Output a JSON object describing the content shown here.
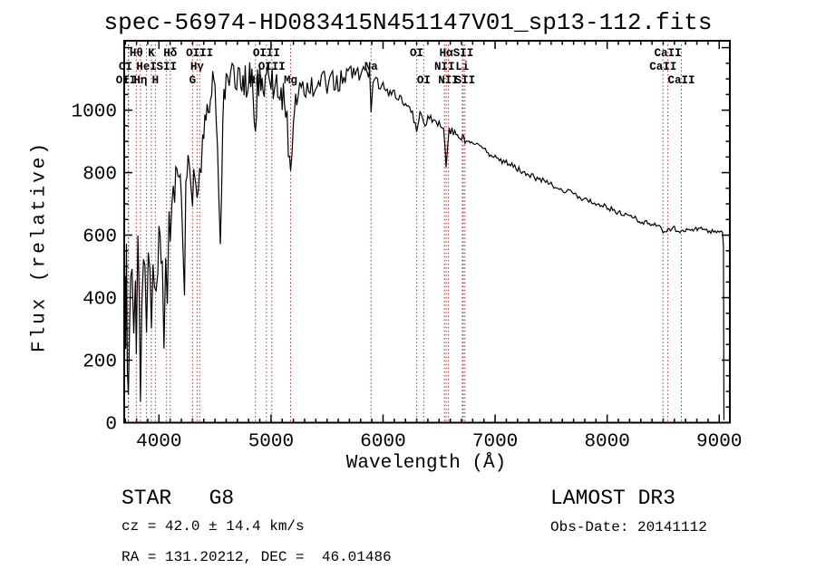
{
  "title": "spec-56974-HD083415N451147V01_sp13-112.fits",
  "annotations": {
    "class_label": "STAR   G8",
    "survey": "LAMOST DR3",
    "cz": "cz = 42.0 ± 14.4 km/s",
    "obs_date": "Obs-Date: 20141112",
    "radec": "RA = 131.20212, DEC =  46.01486"
  },
  "chart_data": {
    "type": "line",
    "title": "spec-56974-HD083415N451147V01_sp13-112.fits",
    "xlabel": "Wavelength (Å)",
    "ylabel": "Flux (relative)",
    "xlim": [
      3690,
      9095
    ],
    "ylim": [
      0,
      1222
    ],
    "grid": false,
    "legend": "none",
    "line_color": "#000000",
    "spectral_line_color": "#a03535",
    "x_ticks": [
      {
        "value": 4000,
        "label": "4000"
      },
      {
        "value": 5000,
        "label": "5000"
      },
      {
        "value": 6000,
        "label": "6000"
      },
      {
        "value": 7000,
        "label": "7000"
      },
      {
        "value": 8000,
        "label": "8000"
      },
      {
        "value": 9000,
        "label": "9000"
      }
    ],
    "x_minor_step": 100,
    "y_ticks": [
      {
        "value": 0,
        "label": "0"
      },
      {
        "value": 200,
        "label": "200"
      },
      {
        "value": 400,
        "label": "400"
      },
      {
        "value": 600,
        "label": "600"
      },
      {
        "value": 800,
        "label": "800"
      },
      {
        "value": 1000,
        "label": "1000"
      },
      {
        "value": 1200,
        "label": ""
      }
    ],
    "y_minor_step": 50,
    "spectral_lines": [
      {
        "label": "OI",
        "wavelength": 3726,
        "row": 2,
        "label_wavelength": 3702
      },
      {
        "label": "OII",
        "wavelength": 3729,
        "row": 3,
        "label_wavelength": 3706
      },
      {
        "label": "Hθ",
        "wavelength": 3798,
        "row": 1
      },
      {
        "label": "Hη",
        "wavelength": 3835,
        "row": 3
      },
      {
        "label": "HeI",
        "wavelength": 3889,
        "row": 2
      },
      {
        "label": "K",
        "wavelength": 3933,
        "row": 1
      },
      {
        "label": "H",
        "wavelength": 3968,
        "row": 3
      },
      {
        "label": "SII",
        "wavelength": 4068,
        "row": 2
      },
      {
        "label": "Hδ",
        "wavelength": 4101,
        "row": 1
      },
      {
        "label": "G",
        "wavelength": 4300,
        "row": 3
      },
      {
        "label": "Hγ",
        "wavelength": 4340,
        "row": 2
      },
      {
        "label": "OIII",
        "wavelength": 4363,
        "row": 1
      },
      {
        "label": "Hβ",
        "wavelength": 4861,
        "row": 3
      },
      {
        "label": "OIII",
        "wavelength": 4959,
        "row": 1
      },
      {
        "label": "OIII",
        "wavelength": 5007,
        "row": 2
      },
      {
        "label": "Mg",
        "wavelength": 5175,
        "row": 3
      },
      {
        "label": "Na",
        "wavelength": 5893,
        "row": 2
      },
      {
        "label": "OI",
        "wavelength": 6300,
        "row": 1
      },
      {
        "label": "OI",
        "wavelength": 6363,
        "row": 3
      },
      {
        "label": "NII",
        "wavelength": 6548,
        "row": 2
      },
      {
        "label": "Hα",
        "wavelength": 6563,
        "row": 1
      },
      {
        "label": "NII",
        "wavelength": 6583,
        "row": 3
      },
      {
        "label": "Li",
        "wavelength": 6707,
        "row": 2
      },
      {
        "label": "SII",
        "wavelength": 6716,
        "row": 1
      },
      {
        "label": "SII",
        "wavelength": 6731,
        "row": 3
      },
      {
        "label": "CaII",
        "wavelength": 8498,
        "row": 2
      },
      {
        "label": "CaII",
        "wavelength": 8542,
        "row": 1
      },
      {
        "label": "CaII",
        "wavelength": 8662,
        "row": 3
      }
    ],
    "spectrum_anchors_lambda_flux_noise": [
      [
        3690,
        40,
        30
      ],
      [
        3697,
        430,
        120
      ],
      [
        3703,
        180,
        100
      ],
      [
        3710,
        520,
        110
      ],
      [
        3718,
        260,
        120
      ],
      [
        3727,
        90,
        60
      ],
      [
        3737,
        380,
        130
      ],
      [
        3748,
        500,
        120
      ],
      [
        3760,
        420,
        130
      ],
      [
        3775,
        330,
        110
      ],
      [
        3790,
        480,
        120
      ],
      [
        3798,
        300,
        90
      ],
      [
        3812,
        520,
        110
      ],
      [
        3825,
        380,
        100
      ],
      [
        3835,
        100,
        60
      ],
      [
        3848,
        420,
        110
      ],
      [
        3862,
        520,
        100
      ],
      [
        3875,
        450,
        100
      ],
      [
        3889,
        330,
        90
      ],
      [
        3905,
        560,
        90
      ],
      [
        3920,
        480,
        90
      ],
      [
        3933,
        260,
        70
      ],
      [
        3947,
        520,
        90
      ],
      [
        3960,
        420,
        80
      ],
      [
        3975,
        350,
        80
      ],
      [
        3990,
        560,
        90
      ],
      [
        4010,
        640,
        90
      ],
      [
        4030,
        480,
        100
      ],
      [
        4045,
        300,
        80
      ],
      [
        4060,
        580,
        90
      ],
      [
        4075,
        420,
        90
      ],
      [
        4090,
        650,
        80
      ],
      [
        4101,
        560,
        70
      ],
      [
        4115,
        700,
        80
      ],
      [
        4140,
        780,
        80
      ],
      [
        4170,
        820,
        70
      ],
      [
        4200,
        760,
        80
      ],
      [
        4215,
        560,
        90
      ],
      [
        4228,
        420,
        80
      ],
      [
        4240,
        700,
        80
      ],
      [
        4260,
        800,
        70
      ],
      [
        4285,
        760,
        70
      ],
      [
        4300,
        720,
        60
      ],
      [
        4320,
        800,
        60
      ],
      [
        4340,
        760,
        60
      ],
      [
        4363,
        820,
        60
      ],
      [
        4390,
        900,
        70
      ],
      [
        4420,
        1000,
        70
      ],
      [
        4450,
        1040,
        70
      ],
      [
        4480,
        1060,
        70
      ],
      [
        4510,
        1020,
        70
      ],
      [
        4548,
        600,
        80
      ],
      [
        4570,
        1000,
        70
      ],
      [
        4600,
        1060,
        60
      ],
      [
        4640,
        1090,
        60
      ],
      [
        4680,
        1100,
        60
      ],
      [
        4720,
        1080,
        60
      ],
      [
        4750,
        1110,
        60
      ],
      [
        4780,
        1090,
        60
      ],
      [
        4810,
        1110,
        55
      ],
      [
        4840,
        1080,
        55
      ],
      [
        4861,
        900,
        60
      ],
      [
        4880,
        1090,
        55
      ],
      [
        4910,
        1110,
        50
      ],
      [
        4940,
        1090,
        50
      ],
      [
        4970,
        1110,
        50
      ],
      [
        5000,
        1090,
        50
      ],
      [
        5030,
        1080,
        50
      ],
      [
        5060,
        1070,
        50
      ],
      [
        5090,
        1050,
        50
      ],
      [
        5120,
        1040,
        50
      ],
      [
        5155,
        900,
        60
      ],
      [
        5175,
        800,
        50
      ],
      [
        5200,
        990,
        50
      ],
      [
        5230,
        1050,
        45
      ],
      [
        5270,
        1070,
        45
      ],
      [
        5310,
        1080,
        45
      ],
      [
        5350,
        1070,
        40
      ],
      [
        5400,
        1080,
        40
      ],
      [
        5450,
        1090,
        40
      ],
      [
        5500,
        1080,
        40
      ],
      [
        5550,
        1090,
        38
      ],
      [
        5600,
        1095,
        38
      ],
      [
        5650,
        1100,
        36
      ],
      [
        5700,
        1110,
        36
      ],
      [
        5750,
        1120,
        34
      ],
      [
        5800,
        1125,
        34
      ],
      [
        5850,
        1130,
        30
      ],
      [
        5880,
        1120,
        25
      ],
      [
        5893,
        990,
        20
      ],
      [
        5910,
        1100,
        25
      ],
      [
        5950,
        1090,
        22
      ],
      [
        6000,
        1075,
        20
      ],
      [
        6050,
        1060,
        18
      ],
      [
        6100,
        1050,
        18
      ],
      [
        6150,
        1035,
        16
      ],
      [
        6200,
        1020,
        16
      ],
      [
        6250,
        1005,
        15
      ],
      [
        6300,
        935,
        14
      ],
      [
        6330,
        990,
        14
      ],
      [
        6363,
        950,
        13
      ],
      [
        6400,
        975,
        13
      ],
      [
        6450,
        965,
        13
      ],
      [
        6500,
        955,
        13
      ],
      [
        6540,
        940,
        12
      ],
      [
        6563,
        825,
        10
      ],
      [
        6590,
        935,
        12
      ],
      [
        6640,
        930,
        12
      ],
      [
        6700,
        915,
        12
      ],
      [
        6731,
        905,
        11
      ],
      [
        6800,
        890,
        11
      ],
      [
        6900,
        872,
        11
      ],
      [
        7000,
        852,
        11
      ],
      [
        7100,
        832,
        11
      ],
      [
        7200,
        812,
        10
      ],
      [
        7300,
        795,
        10
      ],
      [
        7400,
        778,
        10
      ],
      [
        7500,
        762,
        10
      ],
      [
        7600,
        748,
        10
      ],
      [
        7700,
        730,
        10
      ],
      [
        7800,
        715,
        9
      ],
      [
        7900,
        700,
        9
      ],
      [
        8000,
        688,
        9
      ],
      [
        8100,
        672,
        9
      ],
      [
        8200,
        658,
        9
      ],
      [
        8300,
        645,
        9
      ],
      [
        8400,
        634,
        9
      ],
      [
        8450,
        628,
        9
      ],
      [
        8498,
        615,
        8
      ],
      [
        8542,
        612,
        8
      ],
      [
        8600,
        622,
        8
      ],
      [
        8662,
        610,
        8
      ],
      [
        8720,
        625,
        8
      ],
      [
        8780,
        618,
        8
      ],
      [
        8840,
        622,
        8
      ],
      [
        8900,
        615,
        8
      ],
      [
        8950,
        612,
        8
      ],
      [
        9000,
        612,
        7
      ],
      [
        9030,
        605,
        6
      ],
      [
        9038,
        560,
        5
      ],
      [
        9042,
        8,
        3
      ]
    ]
  }
}
